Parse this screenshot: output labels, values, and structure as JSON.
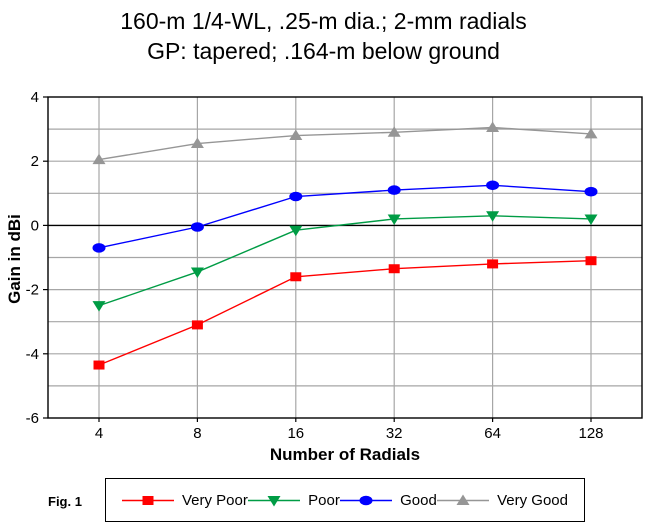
{
  "figure": {
    "title_line1": "160-m 1/4-WL, .25-m dia.; 2-mm radials",
    "title_line2": "GP: tapered; .164-m below ground",
    "fig_label": "Fig. 1"
  },
  "chart_data": {
    "type": "line",
    "title": "160-m 1/4-WL, .25-m dia.; 2-mm radials — GP: tapered; .164-m below ground",
    "xlabel": "Number of Radials",
    "ylabel": "Gain in dBi",
    "x_categories": [
      "4",
      "8",
      "16",
      "32",
      "64",
      "128"
    ],
    "ylim": [
      -6,
      4
    ],
    "y_grid_step": 1,
    "y_label_step": 2,
    "y_major_labels": [
      4,
      2,
      0,
      -2,
      -4,
      -6
    ],
    "grid": true,
    "grid_color": "#a6a6a6",
    "zero_line_color": "#000000",
    "legend_position": "bottom",
    "series": [
      {
        "name": "Very Poor",
        "color": "#ff0000",
        "marker": "square",
        "values": [
          -4.35,
          -3.1,
          -1.6,
          -1.35,
          -1.2,
          -1.1
        ]
      },
      {
        "name": "Poor",
        "color": "#009c45",
        "marker": "triangle-down",
        "values": [
          -2.5,
          -1.45,
          -0.15,
          0.2,
          0.3,
          0.2
        ]
      },
      {
        "name": "Good",
        "color": "#0000ff",
        "marker": "ellipse",
        "values": [
          -0.7,
          -0.05,
          0.9,
          1.1,
          1.25,
          1.05
        ]
      },
      {
        "name": "Very Good",
        "color": "#969696",
        "marker": "triangle-up",
        "values": [
          2.05,
          2.55,
          2.8,
          2.9,
          3.05,
          2.85
        ]
      }
    ]
  }
}
